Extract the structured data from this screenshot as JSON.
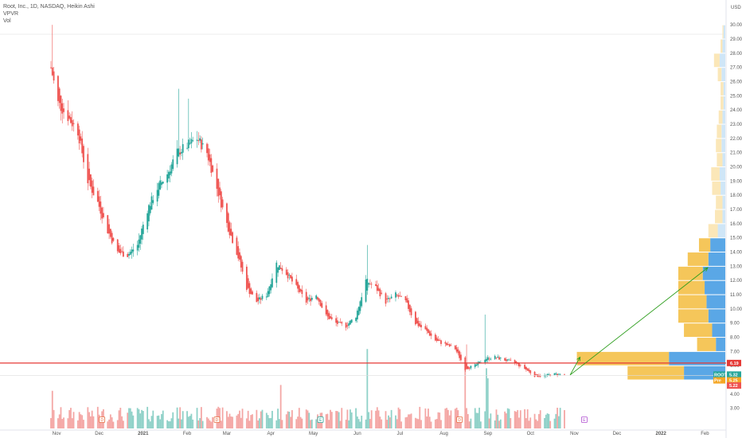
{
  "legend": {
    "line1": "Root, Inc., 1D, NASDAQ, Heikin Ashi",
    "line2": "VPVR",
    "line3": "Vol"
  },
  "colors": {
    "up": "#26a69a",
    "down": "#ef5350",
    "hline": "#e53935",
    "arrow": "#2e9e1e",
    "vp_blue": "#5aa7e6",
    "vp_yellow": "#f5c65a",
    "vp_blue_light": "#cfe6f7",
    "vp_yellow_light": "#fbe7b8"
  },
  "chart_data": {
    "type": "candlestick",
    "title": "Root, Inc., 1D, NASDAQ, Heikin Ashi",
    "currency": "USD",
    "y_ticks": [
      3,
      4,
      5,
      6,
      7,
      8,
      9,
      10,
      11,
      12,
      13,
      14,
      15,
      16,
      17,
      18,
      19,
      20,
      21,
      22,
      23,
      24,
      25,
      26,
      27,
      28,
      29,
      30
    ],
    "ylim": [
      2.2,
      31.3
    ],
    "x_ticks": [
      "Nov",
      "Dec",
      "2021",
      "Feb",
      "Mar",
      "Apr",
      "May",
      "Jun",
      "Jul",
      "Aug",
      "Sep",
      "Oct",
      "Nov",
      "Dec",
      "2022",
      "Feb"
    ],
    "x_tick_dates": [
      "2020-11-01",
      "2020-12-01",
      "2021-01-01",
      "2021-02-01",
      "2021-03-01",
      "2021-04-01",
      "2021-05-01",
      "2021-06-01",
      "2021-07-01",
      "2021-08-01",
      "2021-09-01",
      "2021-10-01",
      "2021-11-01",
      "2021-12-01",
      "2022-01-01",
      "2022-02-01"
    ],
    "x_range": [
      "2020-10-28",
      "2022-02-12"
    ],
    "price_path": [
      [
        "2020-10-28",
        27.0
      ],
      [
        "2020-11-02",
        24.5
      ],
      [
        "2020-11-09",
        23.5
      ],
      [
        "2020-11-16",
        22.5
      ],
      [
        "2020-11-23",
        19.0
      ],
      [
        "2020-11-30",
        17.5
      ],
      [
        "2020-12-07",
        15.5
      ],
      [
        "2020-12-14",
        14.0
      ],
      [
        "2020-12-21",
        13.8
      ],
      [
        "2020-12-28",
        14.5
      ],
      [
        "2021-01-04",
        17.0
      ],
      [
        "2021-01-11",
        18.5
      ],
      [
        "2021-01-18",
        19.5
      ],
      [
        "2021-01-25",
        21.0
      ],
      [
        "2021-02-01",
        21.5
      ],
      [
        "2021-02-08",
        22.0
      ],
      [
        "2021-02-15",
        21.0
      ],
      [
        "2021-02-22",
        18.5
      ],
      [
        "2021-03-01",
        16.0
      ],
      [
        "2021-03-08",
        14.0
      ],
      [
        "2021-03-15",
        11.5
      ],
      [
        "2021-03-22",
        10.5
      ],
      [
        "2021-03-29",
        11.0
      ],
      [
        "2021-04-05",
        13.2
      ],
      [
        "2021-04-12",
        12.5
      ],
      [
        "2021-04-19",
        11.5
      ],
      [
        "2021-04-26",
        10.5
      ],
      [
        "2021-05-03",
        11.0
      ],
      [
        "2021-05-10",
        9.5
      ],
      [
        "2021-05-17",
        9.0
      ],
      [
        "2021-05-24",
        8.8
      ],
      [
        "2021-05-31",
        9.5
      ],
      [
        "2021-06-07",
        12.0
      ],
      [
        "2021-06-14",
        11.5
      ],
      [
        "2021-06-21",
        10.5
      ],
      [
        "2021-06-28",
        11.0
      ],
      [
        "2021-07-05",
        10.5
      ],
      [
        "2021-07-12",
        9.0
      ],
      [
        "2021-07-19",
        8.5
      ],
      [
        "2021-07-26",
        7.8
      ],
      [
        "2021-08-02",
        7.5
      ],
      [
        "2021-08-09",
        7.2
      ],
      [
        "2021-08-16",
        5.8
      ],
      [
        "2021-08-23",
        6.0
      ],
      [
        "2021-08-30",
        6.5
      ],
      [
        "2021-09-06",
        6.6
      ],
      [
        "2021-09-13",
        6.4
      ],
      [
        "2021-09-20",
        6.2
      ],
      [
        "2021-09-27",
        5.8
      ],
      [
        "2021-10-04",
        5.3
      ],
      [
        "2021-10-11",
        5.3
      ],
      [
        "2021-10-18",
        5.4
      ],
      [
        "2021-10-25",
        5.4
      ]
    ],
    "spikes": [
      {
        "date": "2020-10-29",
        "high": 30.0
      },
      {
        "date": "2021-01-26",
        "high": 25.5
      },
      {
        "date": "2021-02-02",
        "high": 24.8
      },
      {
        "date": "2021-06-08",
        "high": 14.5
      },
      {
        "date": "2021-08-30",
        "high": 9.6
      },
      {
        "date": "2021-08-17",
        "high": 7.5
      }
    ],
    "volume_spikes": [
      {
        "date": "2020-10-29",
        "v": 0.45
      },
      {
        "date": "2021-04-08",
        "v": 0.52
      },
      {
        "date": "2021-06-08",
        "v": 0.95
      },
      {
        "date": "2021-08-16",
        "v": 0.7
      },
      {
        "date": "2021-08-31",
        "v": 0.72
      },
      {
        "date": "2021-09-01",
        "v": 0.6
      }
    ],
    "events_dividend": [
      "2020-12-03",
      "2021-02-22",
      "2021-08-12"
    ],
    "events_earnings": [
      "2021-05-06"
    ],
    "events_future": [
      "2021-11-08"
    ],
    "horizontal_line": {
      "price": 6.19,
      "label": "6.19"
    },
    "trend_arrow": {
      "from": [
        "2021-10-29",
        5.35
      ],
      "to": [
        "2022-02-03",
        12.9
      ]
    },
    "small_arrow": {
      "from": [
        "2021-10-29",
        5.35
      ],
      "to": [
        "2021-11-05",
        6.6
      ]
    },
    "price_tags": [
      {
        "label": "ROOT",
        "value": "5.32",
        "color": "#26a69a"
      },
      {
        "label": "Pre",
        "value": "5.25",
        "color": "#f5a623"
      },
      {
        "label": "",
        "value": "5.22",
        "color": "#ef5350"
      }
    ],
    "volume_profile_right": [
      {
        "price": 29.0,
        "blue": 2,
        "yellow": 1
      },
      {
        "price": 28.0,
        "blue": 3,
        "yellow": 2
      },
      {
        "price": 27.0,
        "blue": 6,
        "yellow": 6
      },
      {
        "price": 26.0,
        "blue": 4,
        "yellow": 4
      },
      {
        "price": 25.0,
        "blue": 2,
        "yellow": 3
      },
      {
        "price": 24.0,
        "blue": 2,
        "yellow": 3
      },
      {
        "price": 23.0,
        "blue": 3,
        "yellow": 4
      },
      {
        "price": 22.0,
        "blue": 4,
        "yellow": 5
      },
      {
        "price": 21.0,
        "blue": 4,
        "yellow": 6
      },
      {
        "price": 20.0,
        "blue": 3,
        "yellow": 6
      },
      {
        "price": 19.0,
        "blue": 6,
        "yellow": 9
      },
      {
        "price": 18.0,
        "blue": 5,
        "yellow": 9
      },
      {
        "price": 17.0,
        "blue": 3,
        "yellow": 7
      },
      {
        "price": 16.0,
        "blue": 3,
        "yellow": 8
      },
      {
        "price": 15.0,
        "blue": 8,
        "yellow": 10
      },
      {
        "price": 14.0,
        "blue": 16,
        "yellow": 12
      },
      {
        "price": 13.0,
        "blue": 18,
        "yellow": 22
      },
      {
        "price": 12.0,
        "blue": 24,
        "yellow": 26
      },
      {
        "price": 11.0,
        "blue": 22,
        "yellow": 28
      },
      {
        "price": 10.0,
        "blue": 20,
        "yellow": 30
      },
      {
        "price": 9.0,
        "blue": 18,
        "yellow": 32
      },
      {
        "price": 8.0,
        "blue": 14,
        "yellow": 30
      },
      {
        "price": 7.0,
        "blue": 10,
        "yellow": 20
      },
      {
        "price": 6.0,
        "blue": 60,
        "yellow": 98
      },
      {
        "price": 5.0,
        "blue": 44,
        "yellow": 60
      }
    ]
  }
}
